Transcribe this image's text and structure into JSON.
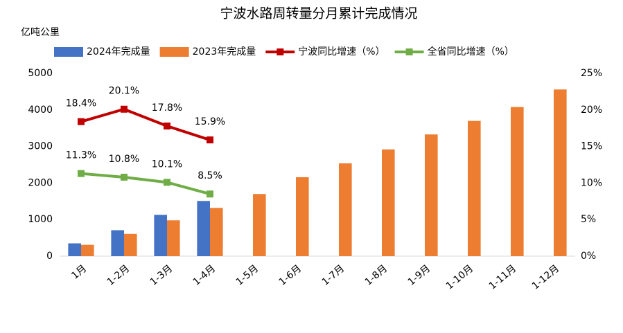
{
  "chart_data": {
    "type": "bar-line",
    "title": "宁波水路周转量分月累计完成情况",
    "y_label": "亿吨公里",
    "categories": [
      "1月",
      "1-2月",
      "1-3月",
      "1-4月",
      "1-5月",
      "1-6月",
      "1-7月",
      "1-8月",
      "1-9月",
      "1-10月",
      "1-11月",
      "1-12月"
    ],
    "series": [
      {
        "name": "2024年完成量",
        "type": "bar",
        "color": "#4472c4",
        "values": [
          350,
          710,
          1130,
          1510,
          null,
          null,
          null,
          null,
          null,
          null,
          null,
          null
        ]
      },
      {
        "name": "2023年完成量",
        "type": "bar",
        "color": "#ed7d31",
        "values": [
          310,
          610,
          980,
          1320,
          1700,
          2160,
          2540,
          2920,
          3330,
          3700,
          4080,
          4560
        ]
      },
      {
        "name": "宁波同比增速（%）",
        "type": "line",
        "axis": "y2",
        "color": "#c00000",
        "values": [
          18.4,
          20.1,
          17.8,
          15.9,
          null,
          null,
          null,
          null,
          null,
          null,
          null,
          null
        ],
        "value_labels": [
          "18.4%",
          "20.1%",
          "17.8%",
          "15.9%",
          null,
          null,
          null,
          null,
          null,
          null,
          null,
          null
        ]
      },
      {
        "name": "全省同比增速（%）",
        "type": "line",
        "axis": "y2",
        "color": "#70ad47",
        "values": [
          11.3,
          10.8,
          10.1,
          8.5,
          null,
          null,
          null,
          null,
          null,
          null,
          null,
          null
        ],
        "value_labels": [
          "11.3%",
          "10.8%",
          "10.1%",
          "8.5%",
          null,
          null,
          null,
          null,
          null,
          null,
          null,
          null
        ]
      }
    ],
    "ylim": [
      0,
      5000
    ],
    "yticks": [
      0,
      1000,
      2000,
      3000,
      4000,
      5000
    ],
    "y2lim": [
      0,
      25
    ],
    "y2ticks": [
      {
        "value": 0,
        "label": "0%"
      },
      {
        "value": 5,
        "label": "5%"
      },
      {
        "value": 10,
        "label": "10%"
      },
      {
        "value": 15,
        "label": "15%"
      },
      {
        "value": 20,
        "label": "20%"
      },
      {
        "value": 25,
        "label": "25%"
      }
    ],
    "grid": false
  }
}
